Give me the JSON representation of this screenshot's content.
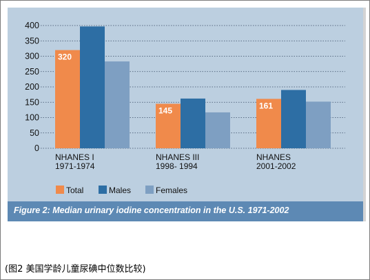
{
  "colors": {
    "panel": "#bccfe0",
    "caption_bar": "#5d89b4",
    "series": [
      "#f08a4b",
      "#2d6ea4",
      "#7e9fc2"
    ]
  },
  "chart_data": {
    "type": "bar",
    "categories": [
      [
        "NHANES I",
        "1971-1974"
      ],
      [
        "NHANES III",
        "1998- 1994"
      ],
      [
        "NHANES",
        "2001-2002"
      ]
    ],
    "series": [
      {
        "name": "Total",
        "values": [
          320,
          145,
          161
        ],
        "data_labels": [
          "320",
          "145",
          "161"
        ]
      },
      {
        "name": "Males",
        "values": [
          397,
          162,
          190
        ],
        "data_labels": [
          "",
          "",
          ""
        ]
      },
      {
        "name": "Females",
        "values": [
          283,
          117,
          152
        ],
        "data_labels": [
          "",
          "",
          ""
        ]
      }
    ],
    "yticks": [
      "0",
      "50",
      "100",
      "150",
      "200",
      "250",
      "300",
      "350",
      "400"
    ],
    "ylim": [
      0,
      400
    ],
    "grid": "horizontal dotted",
    "legend": "bottom-left",
    "title": "Figure 2: Median urinary iodine concentration in the U.S. 1971-2002"
  },
  "footer": {
    "caption": "(图2 美国学龄儿童尿碘中位数比较)"
  }
}
